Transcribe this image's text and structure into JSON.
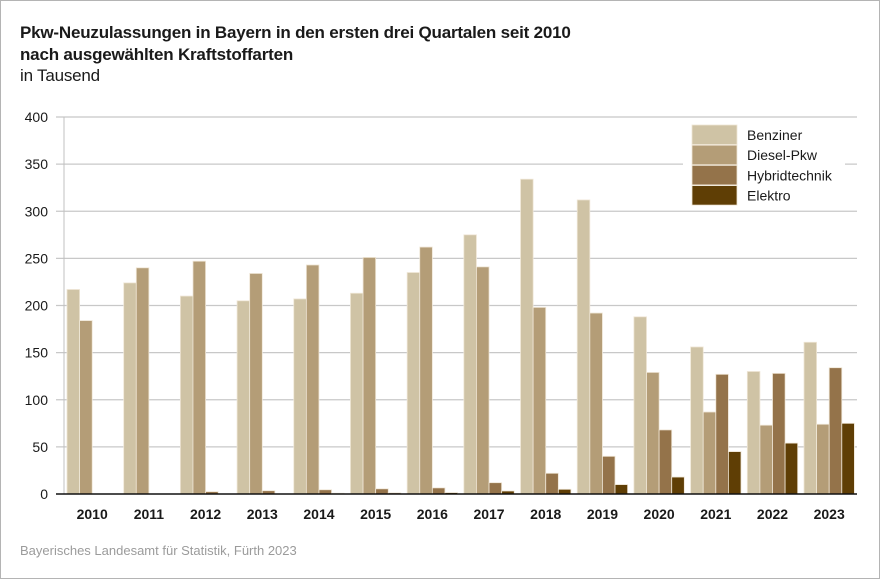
{
  "chart_data": {
    "type": "bar",
    "title": "Pkw-Neuzulassungen in Bayern in den ersten drei Quartalen seit 2010",
    "title_line2": "nach ausgewählten Kraftstoffarten",
    "subtitle": "in Tausend",
    "xlabel": "",
    "ylabel": "",
    "ylim": [
      0,
      400
    ],
    "yticks": [
      0,
      50,
      100,
      150,
      200,
      250,
      300,
      350,
      400
    ],
    "grid": true,
    "legend_position": "top-right",
    "categories": [
      "2010",
      "2011",
      "2012",
      "2013",
      "2014",
      "2015",
      "2016",
      "2017",
      "2018",
      "2019",
      "2020",
      "2021",
      "2022",
      "2023"
    ],
    "series": [
      {
        "name": "Benziner",
        "color": "#cfc3a5",
        "values": [
          217,
          224,
          210,
          205,
          207,
          213,
          235,
          275,
          334,
          312,
          188,
          156,
          130,
          161
        ]
      },
      {
        "name": "Diesel-Pkw",
        "color": "#b49d77",
        "values": [
          184,
          240,
          247,
          234,
          243,
          251,
          262,
          241,
          198,
          192,
          129,
          87,
          73,
          74
        ]
      },
      {
        "name": "Hybridtechnik",
        "color": "#94734a",
        "values": [
          0,
          0,
          2.5,
          3.5,
          4.5,
          5.5,
          6.5,
          12,
          22,
          40,
          68,
          127,
          128,
          134
        ]
      },
      {
        "name": "Elektro",
        "color": "#5f3e05",
        "values": [
          0,
          0,
          0,
          0,
          0.8,
          1.2,
          1.5,
          3.2,
          5,
          10,
          18,
          45,
          54,
          75
        ]
      }
    ]
  },
  "source": "Bayerisches Landesamt für Statistik, Fürth 2023"
}
